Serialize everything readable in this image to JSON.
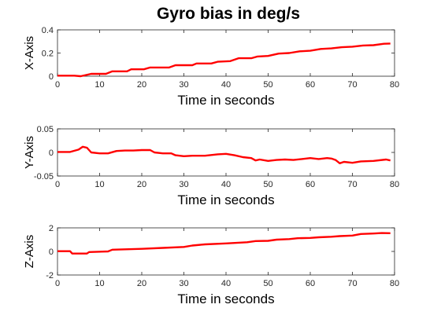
{
  "figure_title": "Gyro bias in deg/s",
  "chart_data": [
    {
      "type": "line",
      "xlabel": "Time in seconds",
      "ylabel": "X-Axis",
      "xlim": [
        0,
        80
      ],
      "ylim": [
        0,
        0.4
      ],
      "xticks": [
        "0",
        "10",
        "20",
        "30",
        "40",
        "50",
        "60",
        "70",
        "80"
      ],
      "yticks": [
        "0",
        "0.2",
        "0.4"
      ],
      "ytick_values": [
        0,
        0.2,
        0.4
      ],
      "series": [
        {
          "color": "#ff0000",
          "x": [
            0,
            4,
            5.5,
            8,
            11.5,
            13,
            16.5,
            17.5,
            20.5,
            22,
            26.5,
            28,
            32,
            33,
            36.5,
            38,
            41,
            43,
            46,
            47.5,
            50,
            52.5,
            55,
            57.5,
            60,
            62.5,
            65,
            67.5,
            70,
            72.5,
            75,
            77.5,
            79
          ],
          "y": [
            0.005,
            0.005,
            0.0,
            0.02,
            0.02,
            0.042,
            0.042,
            0.06,
            0.06,
            0.075,
            0.075,
            0.095,
            0.095,
            0.11,
            0.11,
            0.125,
            0.13,
            0.155,
            0.155,
            0.17,
            0.175,
            0.195,
            0.2,
            0.215,
            0.22,
            0.235,
            0.24,
            0.25,
            0.255,
            0.265,
            0.268,
            0.28,
            0.282
          ]
        }
      ]
    },
    {
      "type": "line",
      "xlabel": "Time in seconds",
      "ylabel": "Y-Axis",
      "xlim": [
        0,
        80
      ],
      "ylim": [
        -0.05,
        0.05
      ],
      "xticks": [
        "0",
        "10",
        "20",
        "30",
        "40",
        "50",
        "60",
        "70",
        "80"
      ],
      "yticks": [
        "-0.05",
        "0",
        "0.05"
      ],
      "ytick_values": [
        -0.05,
        0,
        0.05
      ],
      "series": [
        {
          "color": "#ff0000",
          "x": [
            0,
            3,
            5,
            6,
            7,
            8,
            10,
            12,
            14,
            16,
            18,
            20,
            22,
            23,
            25,
            27,
            28,
            30,
            32,
            35,
            38,
            40,
            42,
            44,
            46,
            47,
            48,
            50,
            52,
            54,
            56,
            58,
            60,
            62,
            64,
            65,
            66,
            67,
            68,
            70,
            72,
            75,
            78,
            79
          ],
          "y": [
            0.001,
            0.001,
            0.006,
            0.012,
            0.01,
            0.0,
            -0.002,
            -0.002,
            0.003,
            0.004,
            0.004,
            0.005,
            0.005,
            0.0,
            -0.002,
            -0.002,
            -0.006,
            -0.008,
            -0.007,
            -0.007,
            -0.004,
            -0.003,
            -0.006,
            -0.01,
            -0.012,
            -0.017,
            -0.015,
            -0.018,
            -0.016,
            -0.015,
            -0.016,
            -0.014,
            -0.012,
            -0.014,
            -0.012,
            -0.013,
            -0.016,
            -0.023,
            -0.02,
            -0.022,
            -0.019,
            -0.018,
            -0.015,
            -0.017
          ]
        }
      ]
    },
    {
      "type": "line",
      "xlabel": "Time in seconds",
      "ylabel": "Z-Axis",
      "xlim": [
        0,
        80
      ],
      "ylim": [
        -2,
        2
      ],
      "xticks": [
        "0",
        "10",
        "20",
        "30",
        "40",
        "50",
        "60",
        "70",
        "80"
      ],
      "yticks": [
        "-2",
        "0",
        "2"
      ],
      "ytick_values": [
        -2,
        0,
        2
      ],
      "series": [
        {
          "color": "#ff0000",
          "x": [
            0,
            3,
            3.5,
            7,
            7.5,
            12,
            13,
            20,
            25,
            30,
            32,
            35,
            40,
            45,
            47,
            50,
            52,
            55,
            57,
            60,
            62,
            65,
            67,
            70,
            72,
            75,
            77,
            79
          ],
          "y": [
            0.02,
            0.02,
            -0.18,
            -0.18,
            -0.05,
            0.0,
            0.15,
            0.22,
            0.3,
            0.38,
            0.5,
            0.6,
            0.68,
            0.78,
            0.88,
            0.9,
            1.0,
            1.05,
            1.12,
            1.15,
            1.2,
            1.25,
            1.3,
            1.35,
            1.48,
            1.52,
            1.56,
            1.55
          ]
        }
      ]
    }
  ]
}
